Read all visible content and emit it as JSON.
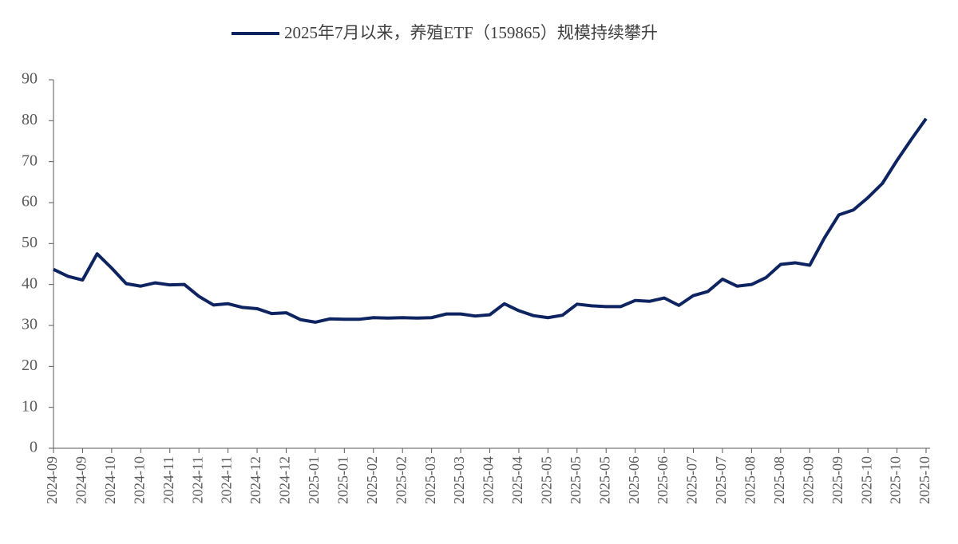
{
  "chart_data": {
    "type": "line",
    "categories": [
      "2024-09",
      null,
      "2024-09",
      null,
      "2024-10",
      null,
      "2024-10",
      null,
      "2024-11",
      null,
      "2024-11",
      null,
      "2024-11",
      null,
      "2024-12",
      null,
      "2024-12",
      null,
      "2025-01",
      null,
      "2025-01",
      null,
      "2025-02",
      null,
      "2025-02",
      null,
      "2025-03",
      null,
      "2025-03",
      null,
      "2025-04",
      null,
      "2025-04",
      null,
      "2025-05",
      null,
      "2025-05",
      null,
      "2025-05",
      null,
      "2025-06",
      null,
      "2025-06",
      null,
      "2025-07",
      null,
      "2025-07",
      null,
      "2025-08",
      null,
      "2025-08",
      null,
      "2025-09",
      null,
      "2025-09",
      null,
      "2025-10",
      null,
      "2025-10",
      null,
      "2025-10"
    ],
    "series": [
      {
        "name": "2025年7月以来，养殖ETF（159865）规模持续攀升",
        "color": "#0d2461",
        "values": [
          43.7,
          42,
          41.1,
          47.5,
          44,
          40.2,
          39.6,
          40.4,
          39.9,
          40,
          37.1,
          35,
          35.3,
          34.4,
          34.1,
          32.9,
          33.1,
          31.4,
          30.8,
          31.6,
          31.5,
          31.5,
          31.9,
          31.8,
          31.9,
          31.8,
          31.9,
          32.8,
          32.8,
          32.3,
          32.6,
          35.3,
          33.6,
          32.4,
          31.9,
          32.5,
          35.2,
          34.8,
          34.6,
          34.6,
          36.1,
          35.9,
          36.7,
          34.9,
          37.3,
          38.3,
          41.3,
          39.6,
          40,
          41.7,
          44.9,
          45.3,
          44.7,
          51.3,
          57,
          58.2,
          61.2,
          64.7,
          70.3,
          75.5,
          80.5
        ]
      }
    ],
    "ylim": [
      0,
      90
    ],
    "yticks": [
      0,
      10,
      20,
      30,
      40,
      50,
      60,
      70,
      80,
      90
    ],
    "legend": "top"
  }
}
